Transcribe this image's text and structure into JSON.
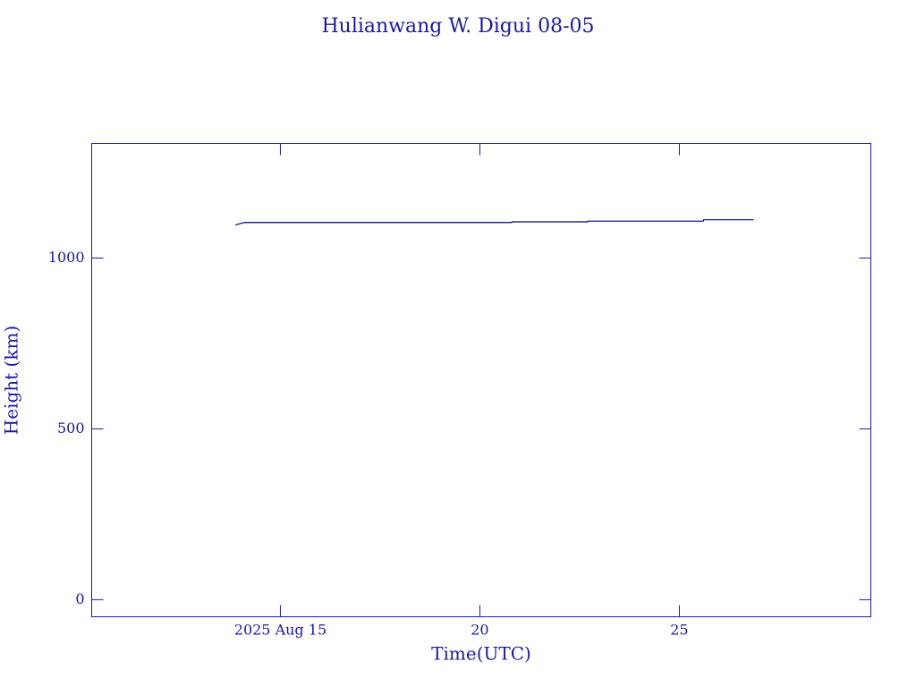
{
  "chart_data": {
    "type": "line",
    "title": "Hulianwang W. Digui 08-05",
    "x_label": "Time(UTC)",
    "y_label": "Height (km)",
    "x": [
      13.87,
      14.1,
      20.8,
      20.81,
      22.7,
      22.71,
      25.6,
      25.61,
      26.86
    ],
    "series": [
      {
        "color": "#000080",
        "values": [
          1097,
          1104,
          1104,
          1106,
          1106,
          1108,
          1108,
          1112,
          1112
        ]
      }
    ],
    "xlim": [
      10.27,
      29.8
    ],
    "xticks": [
      {
        "value": 15,
        "label": "2025 Aug 15"
      },
      20,
      25
    ],
    "ylim": [
      -50,
      1335
    ],
    "yticks": [
      0,
      500,
      1000
    ],
    "grid": false
  }
}
